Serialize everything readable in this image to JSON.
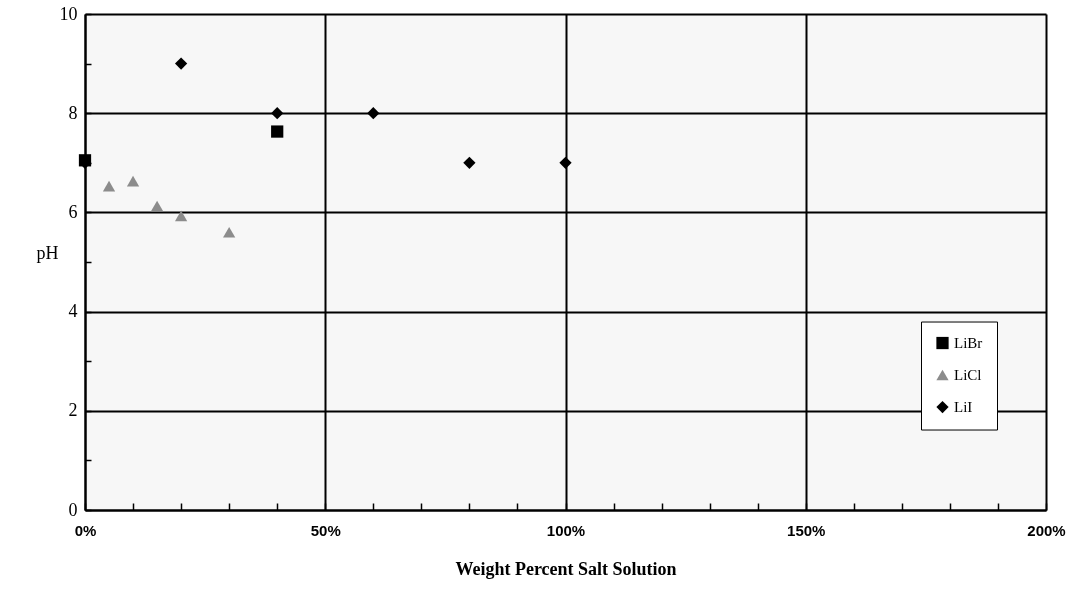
{
  "chart_data": {
    "type": "scatter",
    "xlabel": "Weight Percent Salt Solution",
    "ylabel": "pH",
    "xlim": [
      0,
      200
    ],
    "ylim": [
      0,
      10
    ],
    "xticks": [
      {
        "value": 0,
        "label": "0%"
      },
      {
        "value": 10,
        "label": null
      },
      {
        "value": 20,
        "label": null
      },
      {
        "value": 30,
        "label": null
      },
      {
        "value": 40,
        "label": null
      },
      {
        "value": 50,
        "label": "50%"
      },
      {
        "value": 60,
        "label": null
      },
      {
        "value": 70,
        "label": null
      },
      {
        "value": 80,
        "label": null
      },
      {
        "value": 90,
        "label": null
      },
      {
        "value": 100,
        "label": "100%"
      },
      {
        "value": 110,
        "label": null
      },
      {
        "value": 120,
        "label": null
      },
      {
        "value": 130,
        "label": null
      },
      {
        "value": 140,
        "label": null
      },
      {
        "value": 150,
        "label": "150%"
      },
      {
        "value": 160,
        "label": null
      },
      {
        "value": 170,
        "label": null
      },
      {
        "value": 180,
        "label": null
      },
      {
        "value": 190,
        "label": null
      },
      {
        "value": 200,
        "label": "200%"
      }
    ],
    "yticks": [
      0,
      {
        "value": 1,
        "label": null
      },
      2,
      {
        "value": 3,
        "label": null
      },
      4,
      {
        "value": 5,
        "label": null
      },
      6,
      {
        "value": 7,
        "label": null
      },
      8,
      {
        "value": 9,
        "label": null
      },
      10
    ],
    "grid": true,
    "legend": "right",
    "series": [
      {
        "name": "LiBr",
        "color": "#000000",
        "marker": "square",
        "x": [
          0,
          40
        ],
        "values": [
          7.05,
          7.63
        ]
      },
      {
        "name": "LiCl",
        "color": "#8c8c8c",
        "marker": "triangle",
        "x": [
          5,
          10,
          15,
          20,
          30
        ],
        "values": [
          6.53,
          6.63,
          6.13,
          5.93,
          5.6
        ]
      },
      {
        "name": "LiI",
        "color": "#000000",
        "marker": "diamond",
        "x": [
          0,
          20,
          40,
          60,
          80,
          100
        ],
        "values": [
          7.0,
          9.0,
          8.0,
          8.0,
          7.0,
          7.0
        ]
      }
    ]
  }
}
